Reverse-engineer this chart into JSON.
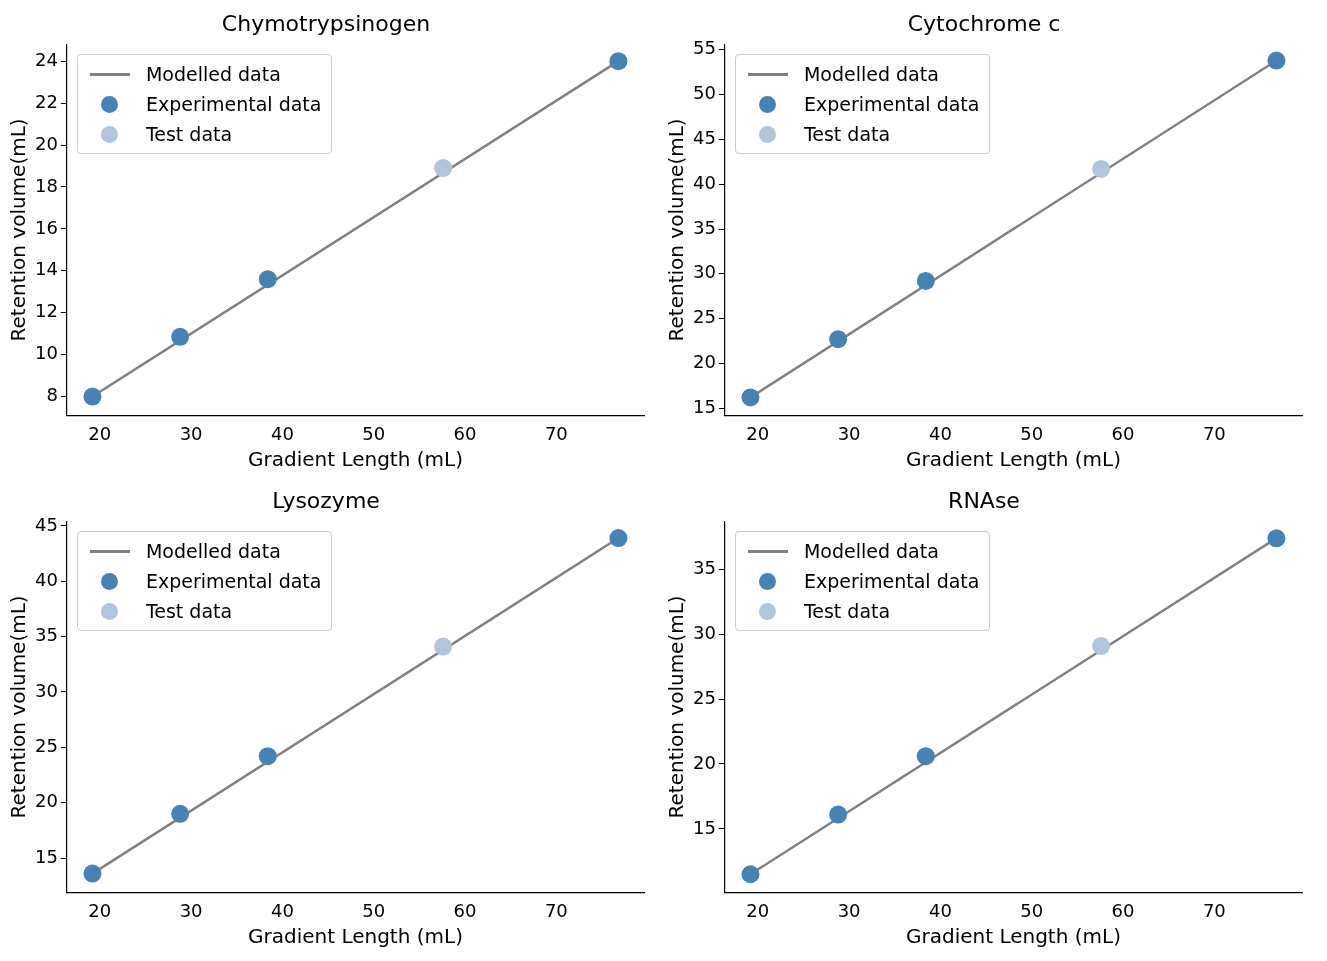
{
  "chart_data": [
    {
      "type": "scatter",
      "title": "Chymotrypsinogen",
      "xlabel": "Gradient Length (mL)",
      "ylabel": "Retention volume(mL)",
      "xlim": [
        16.4,
        79.6
      ],
      "xticks": [
        20,
        30,
        40,
        50,
        60,
        70
      ],
      "ylim": [
        7.1,
        24.8
      ],
      "yticks": [
        8,
        10,
        12,
        14,
        16,
        18,
        20,
        22,
        24
      ],
      "grid": false,
      "legend": "top left",
      "series": [
        {
          "type": "line",
          "name": "Modelled data",
          "color": "#808080",
          "marker": "none",
          "x": [
            19.2,
            76.8
          ],
          "values": [
            8.0,
            24.0
          ]
        },
        {
          "type": "scatter",
          "name": "Experimental data",
          "color": "#4682b4",
          "marker": "circle",
          "x": [
            19.2,
            28.8,
            38.4,
            76.8
          ],
          "values": [
            8.0,
            10.85,
            13.6,
            24.0
          ]
        },
        {
          "type": "scatter",
          "name": "Test data",
          "color": "#b0c4de",
          "marker": "circle",
          "x": [
            57.6
          ],
          "values": [
            18.9
          ]
        }
      ]
    },
    {
      "type": "scatter",
      "title": "Cytochrome c",
      "xlabel": "Gradient Length (mL)",
      "ylabel": "Retention volume(mL)",
      "xlim": [
        16.4,
        79.6
      ],
      "xticks": [
        20,
        30,
        40,
        50,
        60,
        70
      ],
      "ylim": [
        14.2,
        55.6
      ],
      "yticks": [
        15,
        20,
        25,
        30,
        35,
        40,
        45,
        50,
        55
      ],
      "grid": false,
      "legend": "top left",
      "series": [
        {
          "type": "line",
          "name": "Modelled data",
          "color": "#808080",
          "marker": "none",
          "x": [
            19.2,
            76.8
          ],
          "values": [
            16.2,
            53.8
          ]
        },
        {
          "type": "scatter",
          "name": "Experimental data",
          "color": "#4682b4",
          "marker": "circle",
          "x": [
            19.2,
            28.8,
            38.4,
            76.8
          ],
          "values": [
            16.2,
            22.7,
            29.2,
            53.8
          ]
        },
        {
          "type": "scatter",
          "name": "Test data",
          "color": "#b0c4de",
          "marker": "circle",
          "x": [
            57.6
          ],
          "values": [
            41.7
          ]
        }
      ]
    },
    {
      "type": "scatter",
      "title": "Lysozyme",
      "xlabel": "Gradient Length (mL)",
      "ylabel": "Retention volume(mL)",
      "xlim": [
        16.4,
        79.6
      ],
      "xticks": [
        20,
        30,
        40,
        50,
        60,
        70
      ],
      "ylim": [
        11.9,
        45.4
      ],
      "yticks": [
        15,
        20,
        25,
        30,
        35,
        40,
        45
      ],
      "grid": false,
      "legend": "top left",
      "series": [
        {
          "type": "line",
          "name": "Modelled data",
          "color": "#808080",
          "marker": "none",
          "x": [
            19.2,
            76.8
          ],
          "values": [
            13.6,
            43.9
          ]
        },
        {
          "type": "scatter",
          "name": "Experimental data",
          "color": "#4682b4",
          "marker": "circle",
          "x": [
            19.2,
            28.8,
            38.4,
            76.8
          ],
          "values": [
            13.6,
            19.0,
            24.2,
            43.9
          ]
        },
        {
          "type": "scatter",
          "name": "Test data",
          "color": "#b0c4de",
          "marker": "circle",
          "x": [
            57.6
          ],
          "values": [
            34.1
          ]
        }
      ]
    },
    {
      "type": "scatter",
      "title": "RNAse",
      "xlabel": "Gradient Length (mL)",
      "ylabel": "Retention volume(mL)",
      "xlim": [
        16.4,
        79.6
      ],
      "xticks": [
        20,
        30,
        40,
        50,
        60,
        70
      ],
      "ylim": [
        10.1,
        38.7
      ],
      "yticks": [
        15,
        20,
        25,
        30,
        35
      ],
      "grid": false,
      "legend": "top left",
      "series": [
        {
          "type": "line",
          "name": "Modelled data",
          "color": "#808080",
          "marker": "none",
          "x": [
            19.2,
            76.8
          ],
          "values": [
            11.5,
            37.4
          ]
        },
        {
          "type": "scatter",
          "name": "Experimental data",
          "color": "#4682b4",
          "marker": "circle",
          "x": [
            19.2,
            28.8,
            38.4,
            76.8
          ],
          "values": [
            11.5,
            16.1,
            20.6,
            37.4
          ]
        },
        {
          "type": "scatter",
          "name": "Test data",
          "color": "#b0c4de",
          "marker": "circle",
          "x": [
            57.6
          ],
          "values": [
            29.1
          ]
        }
      ]
    }
  ]
}
